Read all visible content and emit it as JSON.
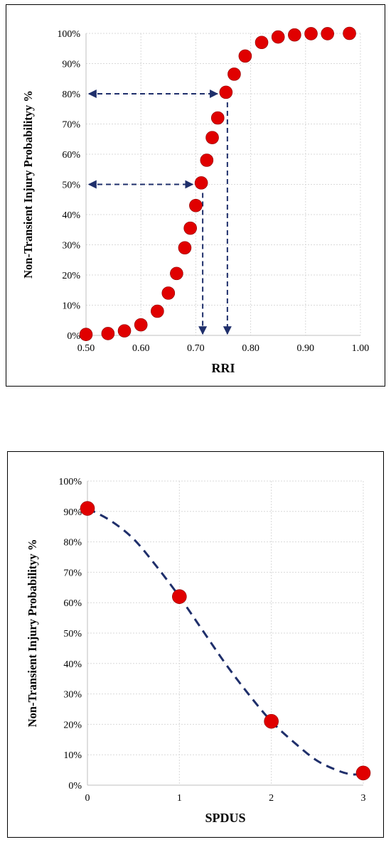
{
  "chart_data": [
    {
      "type": "scatter",
      "xlabel": "RRI",
      "ylabel": "Non-Transient Injury Probabilityy %",
      "xlim": [
        0.5,
        1.0
      ],
      "ylim": [
        0,
        100
      ],
      "xticks": [
        "0.50",
        "0.60",
        "0.70",
        "0.80",
        "0.90",
        "1.00"
      ],
      "yticks": [
        "0%",
        "10%",
        "20%",
        "30%",
        "40%",
        "50%",
        "60%",
        "70%",
        "80%",
        "90%",
        "100%"
      ],
      "grid": true,
      "marker_color": "#e00000",
      "reference_line_color": "#1f2f6b",
      "series": [
        {
          "x": [
            0.5,
            0.54,
            0.57,
            0.6,
            0.63,
            0.65,
            0.665,
            0.68,
            0.69,
            0.7,
            0.71,
            0.72,
            0.73,
            0.74,
            0.755,
            0.77,
            0.79,
            0.82,
            0.85,
            0.88,
            0.91,
            0.94,
            0.98
          ],
          "y": [
            0.3,
            0.6,
            1.5,
            3.5,
            8,
            14,
            20.5,
            29,
            35.5,
            43,
            50.5,
            58,
            65.5,
            72,
            80.5,
            86.5,
            92.5,
            97,
            98.8,
            99.5,
            99.9,
            99.9,
            100
          ]
        }
      ],
      "reference_lines": [
        {
          "y": 50,
          "x": 0.71
        },
        {
          "y": 80,
          "x": 0.755
        }
      ]
    },
    {
      "type": "scatter",
      "xlabel": "SPDUS",
      "ylabel": "Non-Transient Injury Probabilityy %",
      "xlim": [
        0,
        3
      ],
      "ylim": [
        0,
        100
      ],
      "xticks": [
        "0",
        "1",
        "2",
        "3"
      ],
      "yticks": [
        "0%",
        "10%",
        "20%",
        "30%",
        "40%",
        "50%",
        "60%",
        "70%",
        "80%",
        "90%",
        "100%"
      ],
      "grid": true,
      "marker_color": "#e00000",
      "trend_color": "#1f2f6b",
      "series": [
        {
          "x": [
            0,
            1,
            2,
            3
          ],
          "y": [
            91,
            62,
            21,
            4
          ]
        }
      ],
      "trend": {
        "x": [
          0,
          0.25,
          0.5,
          0.75,
          1.0,
          1.25,
          1.5,
          1.75,
          2.0,
          2.25,
          2.5,
          2.75,
          2.9,
          3.0
        ],
        "y": [
          91,
          87,
          81,
          72,
          62,
          51,
          40,
          30,
          21,
          14,
          8,
          4.5,
          3.5,
          4
        ]
      }
    }
  ]
}
